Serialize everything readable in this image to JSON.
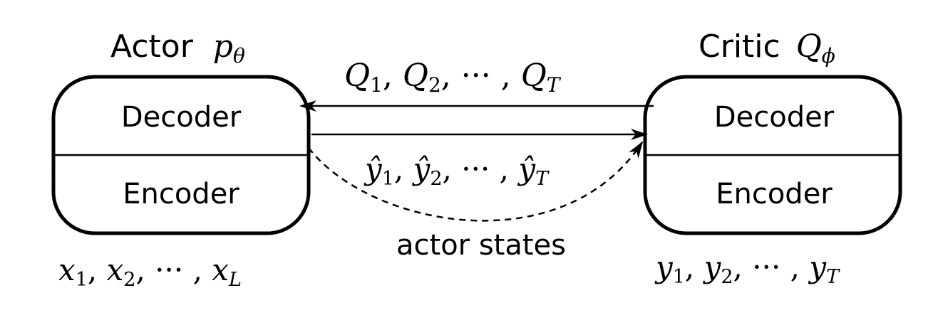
{
  "actor": {
    "title": "Actor",
    "symbol_base": "p",
    "symbol_sub": "θ",
    "decoder_label": "Decoder",
    "encoder_label": "Encoder",
    "input_seq": {
      "first": "x",
      "first_sub": "1",
      "second": "x",
      "second_sub": "2",
      "ellipsis": "···",
      "last": "x",
      "last_sub": "L"
    }
  },
  "critic": {
    "title": "Critic",
    "symbol_base": "Q",
    "symbol_sub": "ϕ",
    "decoder_label": "Decoder",
    "encoder_label": "Encoder",
    "input_seq": {
      "first": "y",
      "first_sub": "1",
      "second": "y",
      "second_sub": "2",
      "ellipsis": "···",
      "last": "y",
      "last_sub": "T"
    }
  },
  "arrows": {
    "q_values": {
      "first": "Q",
      "first_sub": "1",
      "second": "Q",
      "second_sub": "2",
      "ellipsis": "···",
      "last": "Q",
      "last_sub": "T"
    },
    "predictions": {
      "first": "ŷ",
      "first_sub": "1",
      "second": "ŷ",
      "second_sub": "2",
      "ellipsis": "···",
      "last": "ŷ",
      "last_sub": "T"
    },
    "states_label": "actor states"
  }
}
